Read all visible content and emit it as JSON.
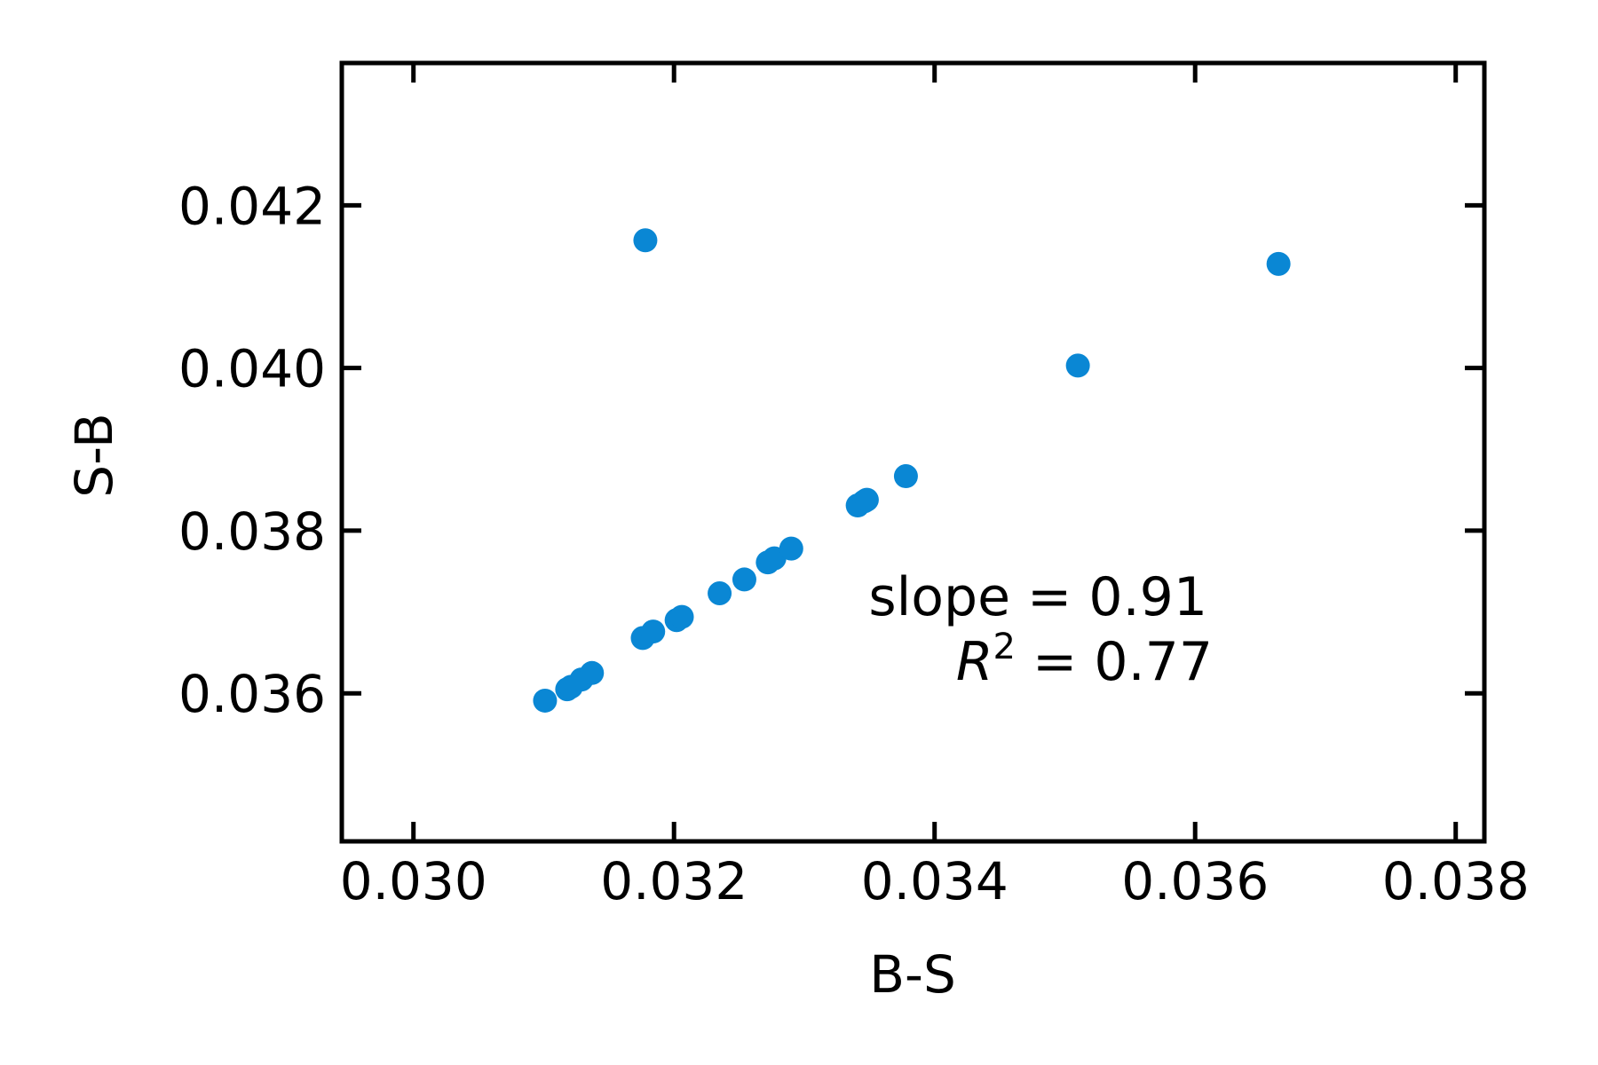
{
  "chart_data": {
    "type": "scatter",
    "xlabel": "B-S",
    "ylabel": "S-B",
    "xlim": [
      0.02945,
      0.03822
    ],
    "ylim": [
      0.03418,
      0.04375
    ],
    "x_ticks": [
      "0.030",
      "0.032",
      "0.034",
      "0.036",
      "0.038"
    ],
    "x_tick_values": [
      0.03,
      0.032,
      0.034,
      0.036,
      0.038
    ],
    "y_ticks": [
      "0.036",
      "0.038",
      "0.040",
      "0.042"
    ],
    "y_tick_values": [
      0.036,
      0.038,
      0.04,
      0.042
    ],
    "grid": false,
    "marker_color": "#0a87d4",
    "series": [
      {
        "points": [
          {
            "x": 0.03101,
            "y": 0.03591
          },
          {
            "x": 0.03118,
            "y": 0.03605
          },
          {
            "x": 0.03121,
            "y": 0.03608
          },
          {
            "x": 0.03129,
            "y": 0.03617
          },
          {
            "x": 0.03137,
            "y": 0.03625
          },
          {
            "x": 0.03176,
            "y": 0.03668
          },
          {
            "x": 0.03184,
            "y": 0.03676
          },
          {
            "x": 0.03202,
            "y": 0.0369
          },
          {
            "x": 0.03206,
            "y": 0.03694
          },
          {
            "x": 0.03235,
            "y": 0.03723
          },
          {
            "x": 0.03254,
            "y": 0.0374
          },
          {
            "x": 0.03272,
            "y": 0.03761
          },
          {
            "x": 0.03277,
            "y": 0.03766
          },
          {
            "x": 0.0329,
            "y": 0.03778
          },
          {
            "x": 0.03341,
            "y": 0.03831
          },
          {
            "x": 0.03346,
            "y": 0.03836
          },
          {
            "x": 0.03348,
            "y": 0.03838
          },
          {
            "x": 0.03378,
            "y": 0.03867
          },
          {
            "x": 0.03178,
            "y": 0.04157
          },
          {
            "x": 0.0351,
            "y": 0.04003
          },
          {
            "x": 0.03664,
            "y": 0.04128
          }
        ]
      }
    ],
    "annotation": {
      "slope_text": "slope = 0.91",
      "r2_symbol": "R",
      "r2_exponent": "2",
      "r2_text": " = 0.77"
    }
  }
}
